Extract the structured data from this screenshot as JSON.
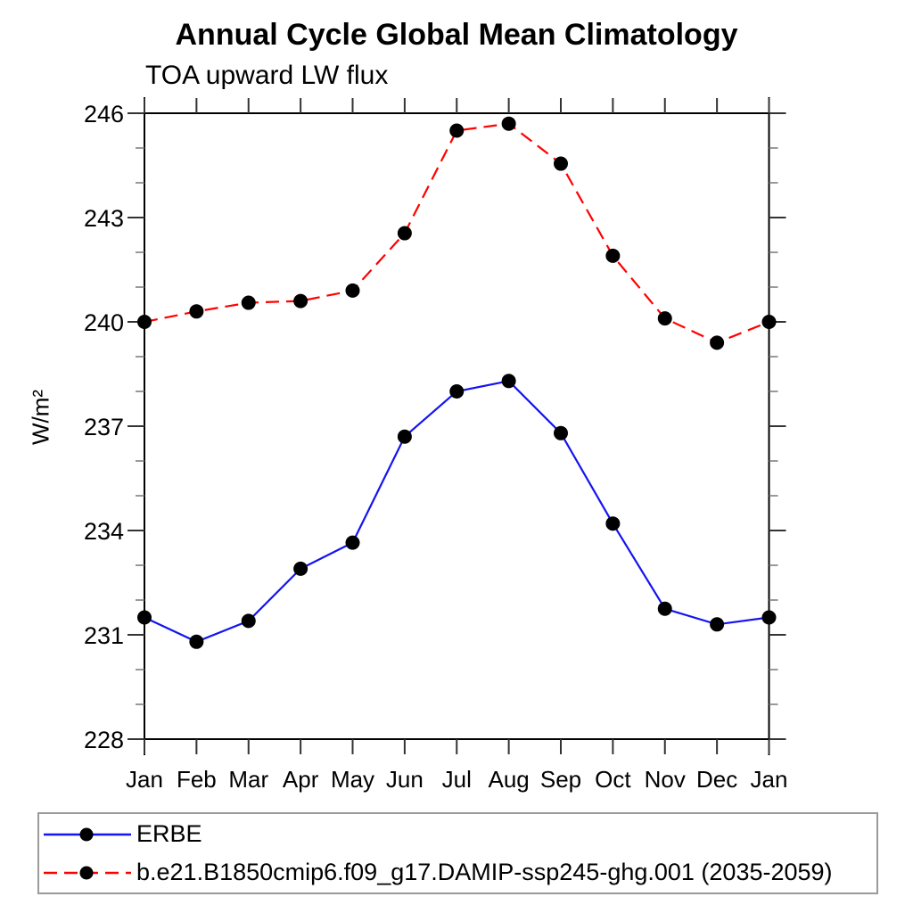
{
  "title": "Annual Cycle Global Mean Climatology",
  "subtitle": "TOA upward LW flux",
  "ylabel": "W/m²",
  "chart_data": {
    "type": "line",
    "categories": [
      "Jan",
      "Feb",
      "Mar",
      "Apr",
      "May",
      "Jun",
      "Jul",
      "Aug",
      "Sep",
      "Oct",
      "Nov",
      "Dec",
      "Jan"
    ],
    "series": [
      {
        "name": "ERBE",
        "color": "#1414f0",
        "style": "solid",
        "values": [
          231.5,
          230.8,
          231.4,
          232.9,
          233.65,
          236.7,
          238.0,
          238.3,
          236.8,
          234.2,
          231.75,
          231.3,
          231.5
        ]
      },
      {
        "name": "b.e21.B1850cmip6.f09_g17.DAMIP-ssp245-ghg.001 (2035-2059)",
        "color": "#ff0000",
        "style": "dashed",
        "values": [
          240.0,
          240.3,
          240.55,
          240.6,
          240.9,
          242.55,
          245.5,
          245.7,
          244.55,
          241.9,
          240.1,
          239.4,
          240.0
        ]
      }
    ],
    "ylim": [
      228,
      246
    ],
    "yticks": [
      228,
      231,
      234,
      237,
      240,
      243,
      246
    ],
    "minor_tick_step": 1,
    "marker_color": "#000000",
    "axis_color": "#000000",
    "minor_tick_color": "#777777",
    "grid": "off",
    "legend_position": "bottom"
  }
}
